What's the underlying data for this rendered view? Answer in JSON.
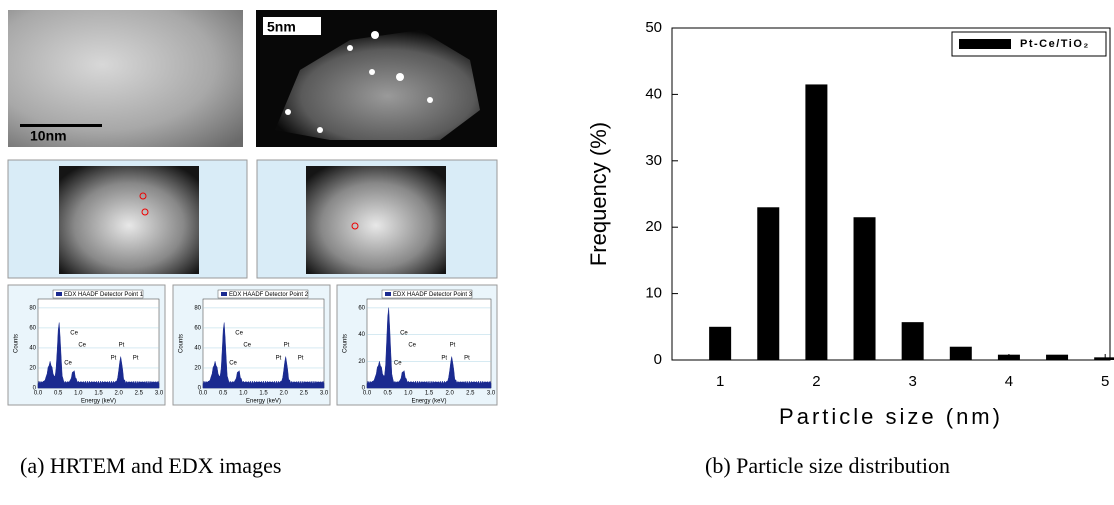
{
  "chart_data": {
    "type": "bar",
    "x": [
      1,
      1.5,
      2,
      2.5,
      3,
      3.5,
      4,
      4.5,
      5
    ],
    "series": [
      {
        "name": "Pt-Ce/TiO₂",
        "color": "#000000",
        "values": [
          5,
          23,
          41.5,
          21.5,
          5.7,
          2,
          0.8,
          0.8,
          0.4
        ]
      }
    ],
    "xlim": [
      0.5,
      5.05
    ],
    "xticks": [
      1,
      2,
      3,
      4,
      5
    ],
    "ylim": [
      0,
      50
    ],
    "yticks": [
      0,
      10,
      20,
      30,
      40,
      50
    ],
    "xlabel": "Particle size (nm)",
    "ylabel": "Frequency (%)",
    "legend": "upper right"
  },
  "images": {
    "hrtem_scale": "10nm",
    "stem_scale": "5nm"
  },
  "edx": [
    {
      "title": "EDX HAADF Detector Point 1",
      "ylabel": "Counts",
      "xlabel": "Energy (keV)",
      "xticks": [
        "0.0",
        "0.5",
        "1.0",
        "1.5",
        "2.0",
        "2.5",
        "3.0"
      ],
      "yticks": [
        "0",
        "20",
        "40",
        "60",
        "80"
      ],
      "peaks": [
        "Ce",
        "Ce",
        "Ce",
        "Pt",
        "Pt",
        "Pt"
      ]
    },
    {
      "title": "EDX HAADF Detector Point 2",
      "ylabel": "Counts",
      "xlabel": "Energy (keV)",
      "xticks": [
        "0.0",
        "0.5",
        "1.0",
        "1.5",
        "2.0",
        "2.5",
        "3.0"
      ],
      "yticks": [
        "0",
        "20",
        "40",
        "60",
        "80"
      ],
      "peaks": [
        "Ce",
        "Ce",
        "Ce",
        "Pt",
        "Pt",
        "Pt"
      ]
    },
    {
      "title": "EDX HAADF Detector Point 3",
      "ylabel": "Counts",
      "xlabel": "Energy (keV)",
      "xticks": [
        "0.0",
        "0.5",
        "1.0",
        "1.5",
        "2.0",
        "2.5",
        "3.0"
      ],
      "yticks": [
        "0",
        "20",
        "40",
        "60"
      ],
      "peaks": [
        "Ce",
        "Ce",
        "Ce",
        "Pt",
        "Pt",
        "Pt"
      ]
    }
  ],
  "captions": {
    "a": "(a) HRTEM and EDX images",
    "b": "(b) Particle size distribution"
  }
}
